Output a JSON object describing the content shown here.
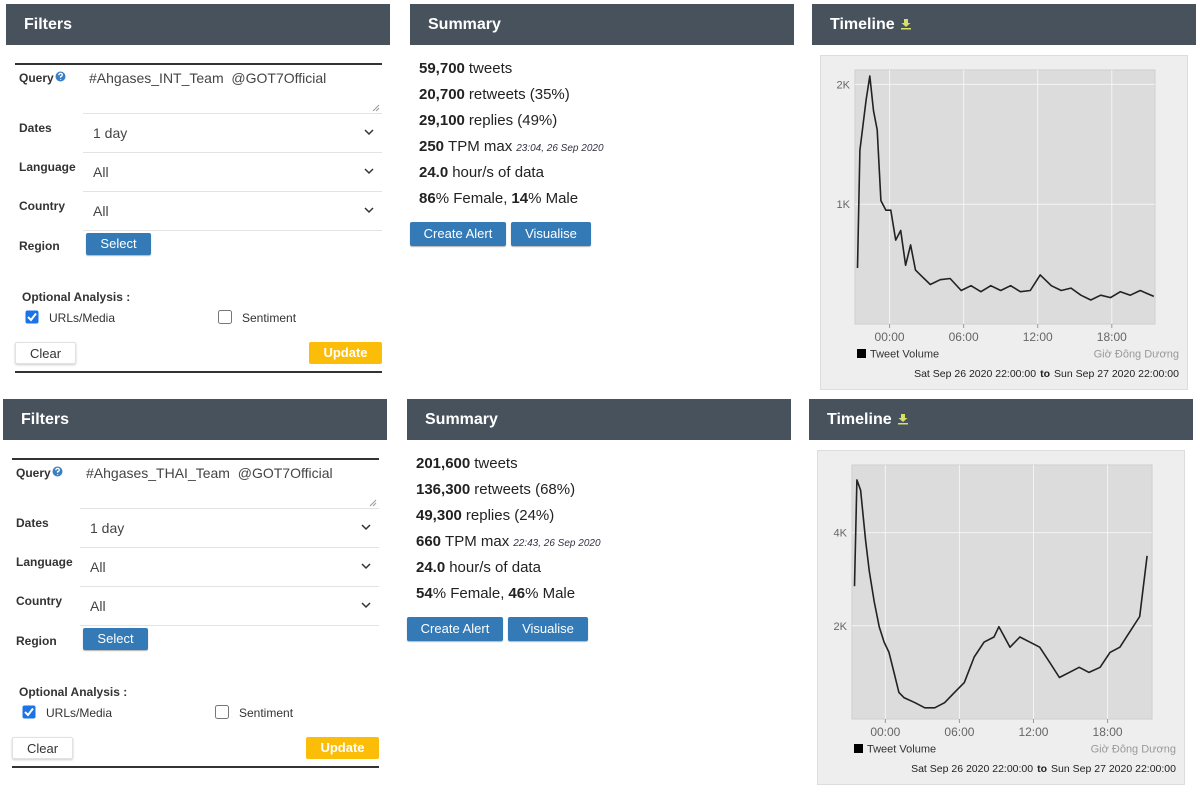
{
  "rows": [
    {
      "filters": {
        "title": "Filters",
        "query_label": "Query",
        "query": "#Ahgases_INT_Team  @GOT7Official",
        "fields": [
          {
            "label": "Dates",
            "value": "1 day"
          },
          {
            "label": "Language",
            "value": "All"
          },
          {
            "label": "Country",
            "value": "All"
          }
        ],
        "region_label": "Region",
        "region_button": "Select",
        "optional_label": "Optional Analysis :",
        "options": [
          {
            "label": "URLs/Media",
            "checked": true
          },
          {
            "label": "Sentiment",
            "checked": false
          }
        ],
        "clear": "Clear",
        "update": "Update"
      },
      "summary": {
        "title": "Summary",
        "lines": [
          [
            {
              "text": "59,700",
              "style": "bold"
            },
            {
              "text": "tweets",
              "style": "plain"
            }
          ],
          [
            {
              "text": "20,700",
              "style": "bold"
            },
            {
              "text": "retweets (35%)",
              "style": "plain"
            }
          ],
          [
            {
              "text": "29,100",
              "style": "bold"
            },
            {
              "text": "replies (49%)",
              "style": "plain"
            }
          ],
          [
            {
              "text": "250",
              "style": "bold"
            },
            {
              "text": "TPM max",
              "style": "plain"
            },
            {
              "text": "23:04, 26 Sep 2020",
              "style": "note"
            }
          ],
          [
            {
              "text": "24.0",
              "style": "bold"
            },
            {
              "text": "hour/s of data",
              "style": "plain"
            }
          ],
          [
            {
              "text": "86",
              "style": "bold"
            },
            {
              "text": "% Female,",
              "style": "plain"
            },
            {
              "text": "14",
              "style": "bold"
            },
            {
              "text": "% Male",
              "style": "plain"
            }
          ]
        ],
        "buttons": [
          "Create Alert",
          "Visualise"
        ]
      }
    },
    {
      "filters": {
        "title": "Filters",
        "query_label": "Query",
        "query": "#Ahgases_THAI_Team  @GOT7Official",
        "fields": [
          {
            "label": "Dates",
            "value": "1 day"
          },
          {
            "label": "Language",
            "value": "All"
          },
          {
            "label": "Country",
            "value": "All"
          }
        ],
        "region_label": "Region",
        "region_button": "Select",
        "optional_label": "Optional Analysis :",
        "options": [
          {
            "label": "URLs/Media",
            "checked": true
          },
          {
            "label": "Sentiment",
            "checked": false
          }
        ],
        "clear": "Clear",
        "update": "Update"
      },
      "summary": {
        "title": "Summary",
        "lines": [
          [
            {
              "text": "201,600",
              "style": "bold"
            },
            {
              "text": "tweets",
              "style": "plain"
            }
          ],
          [
            {
              "text": "136,300",
              "style": "bold"
            },
            {
              "text": "retweets (68%)",
              "style": "plain"
            }
          ],
          [
            {
              "text": "49,300",
              "style": "bold"
            },
            {
              "text": "replies (24%)",
              "style": "plain"
            }
          ],
          [
            {
              "text": "660",
              "style": "bold"
            },
            {
              "text": "TPM max",
              "style": "plain"
            },
            {
              "text": "22:43, 26 Sep 2020",
              "style": "note"
            }
          ],
          [
            {
              "text": "24.0",
              "style": "bold"
            },
            {
              "text": "hour/s of data",
              "style": "plain"
            }
          ],
          [
            {
              "text": "54",
              "style": "bold"
            },
            {
              "text": "% Female,",
              "style": "plain"
            },
            {
              "text": "46",
              "style": "bold"
            },
            {
              "text": "% Male",
              "style": "plain"
            }
          ]
        ],
        "buttons": [
          "Create Alert",
          "Visualise"
        ]
      }
    }
  ],
  "chart_data": [
    {
      "type": "line",
      "title": "Timeline",
      "x": [
        -2.6,
        -2.4,
        -1.9,
        -1.6,
        -1.3,
        -1.0,
        -0.7,
        -0.3,
        0.1,
        0.5,
        0.9,
        1.3,
        1.7,
        2.1,
        2.5,
        3.3,
        4.1,
        4.9,
        5.8,
        6.6,
        7.4,
        8.2,
        9.0,
        9.8,
        10.6,
        11.4,
        12.2,
        13.1,
        13.9,
        14.7,
        15.5,
        16.3,
        17.1,
        17.9,
        18.7,
        19.5,
        20.3,
        21.4
      ],
      "series": [
        {
          "name": "Tweet Volume",
          "color": "#222222",
          "values": [
            467,
            1450,
            1870,
            2070,
            1780,
            1620,
            1030,
            950,
            950,
            700,
            780,
            490,
            660,
            450,
            410,
            330,
            370,
            380,
            280,
            320,
            270,
            320,
            280,
            320,
            270,
            280,
            410,
            320,
            280,
            300,
            240,
            200,
            240,
            220,
            270,
            240,
            280,
            230
          ]
        }
      ],
      "xlim": [
        -2.8,
        21.5
      ],
      "ylim": [
        0,
        2120
      ],
      "xticks": [
        {
          "value": 0,
          "label": "00:00"
        },
        {
          "value": 6,
          "label": "06:00"
        },
        {
          "value": 12,
          "label": "12:00"
        },
        {
          "value": 18,
          "label": "18:00"
        }
      ],
      "yticks": [
        {
          "value": 1000,
          "label": "1K"
        },
        {
          "value": 2000,
          "label": "2K"
        }
      ],
      "grid": true,
      "timezone": "Giờ Đông Dương",
      "range_start": "Sat Sep 26 2020 22:00:00",
      "range_join": "to",
      "range_end": "Sun Sep 27 2020 22:00:00"
    },
    {
      "type": "line",
      "title": "Timeline",
      "x": [
        -2.5,
        -2.3,
        -2.0,
        -1.6,
        -1.3,
        -0.9,
        -0.5,
        -0.1,
        0.3,
        0.7,
        1.1,
        1.5,
        2.4,
        3.2,
        4.0,
        4.8,
        5.6,
        6.4,
        7.2,
        8.0,
        8.8,
        9.2,
        10.1,
        10.9,
        11.7,
        12.5,
        13.3,
        14.1,
        14.9,
        15.7,
        16.5,
        17.4,
        18.2,
        19.0,
        19.8,
        20.6,
        21.2
      ],
      "series": [
        {
          "name": "Tweet Volume",
          "color": "#222222",
          "values": [
            2850,
            5130,
            4910,
            3830,
            3170,
            2520,
            1980,
            1650,
            1430,
            1000,
            570,
            460,
            350,
            240,
            240,
            350,
            570,
            780,
            1330,
            1650,
            1760,
            1980,
            1540,
            1760,
            1650,
            1540,
            1220,
            890,
            1000,
            1110,
            1000,
            1110,
            1430,
            1540,
            1870,
            2200,
            3500
          ]
        }
      ],
      "xlim": [
        -2.7,
        21.6
      ],
      "ylim": [
        0,
        5450
      ],
      "xticks": [
        {
          "value": 0,
          "label": "00:00"
        },
        {
          "value": 6,
          "label": "06:00"
        },
        {
          "value": 12,
          "label": "12:00"
        },
        {
          "value": 18,
          "label": "18:00"
        }
      ],
      "yticks": [
        {
          "value": 2000,
          "label": "2K"
        },
        {
          "value": 4000,
          "label": "4K"
        }
      ],
      "grid": true,
      "timezone": "Giờ Đông Dương",
      "range_start": "Sat Sep 26 2020 22:00:00",
      "range_join": "to",
      "range_end": "Sun Sep 27 2020 22:00:00"
    }
  ]
}
